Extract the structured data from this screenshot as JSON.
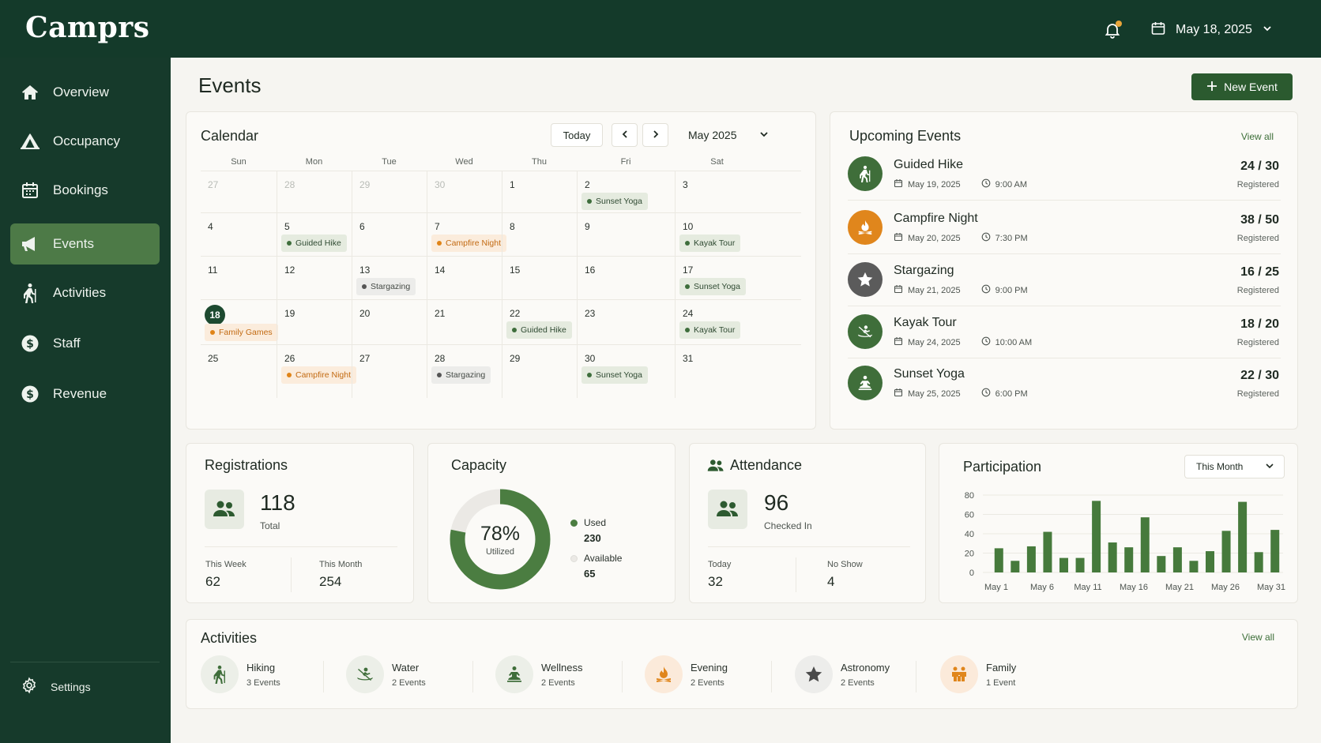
{
  "brand": "Camprs",
  "header": {
    "date": "May 18, 2025"
  },
  "sidebar": {
    "items": [
      {
        "label": "Overview",
        "icon": "home-icon"
      },
      {
        "label": "Occupancy",
        "icon": "tent-icon"
      },
      {
        "label": "Bookings",
        "icon": "calendar-icon"
      },
      {
        "label": "Events",
        "icon": "megaphone-icon",
        "active": true
      },
      {
        "label": "Activities",
        "icon": "hiker-icon"
      },
      {
        "label": "Staff",
        "icon": "dollar-icon"
      },
      {
        "label": "Revenue",
        "icon": "dollar-icon"
      }
    ],
    "settings": "Settings"
  },
  "page": {
    "title": "Events",
    "new_event": "New Event"
  },
  "calendar": {
    "title": "Calendar",
    "today": "Today",
    "month": "May 2025",
    "days_of_week": [
      "Sun",
      "Mon",
      "Tue",
      "Wed",
      "Thu",
      "Fri",
      "Sat"
    ],
    "weeks": [
      [
        {
          "n": "27",
          "muted": true
        },
        {
          "n": "28",
          "muted": true
        },
        {
          "n": "29",
          "muted": true
        },
        {
          "n": "30",
          "muted": true
        },
        {
          "n": "1"
        },
        {
          "n": "2",
          "event": "Sunset Yoga",
          "type": "green"
        },
        {
          "n": "3"
        }
      ],
      [
        {
          "n": "4"
        },
        {
          "n": "5",
          "event": "Guided Hike",
          "type": "green"
        },
        {
          "n": "6"
        },
        {
          "n": "7",
          "event": "Campfire Night",
          "type": "orange"
        },
        {
          "n": "8"
        },
        {
          "n": "9"
        },
        {
          "n": "10",
          "event": "Kayak Tour",
          "type": "green"
        }
      ],
      [
        {
          "n": "11"
        },
        {
          "n": "12"
        },
        {
          "n": "13",
          "event": "Stargazing",
          "type": "gray"
        },
        {
          "n": "14"
        },
        {
          "n": "15"
        },
        {
          "n": "16"
        },
        {
          "n": "17",
          "event": "Sunset Yoga",
          "type": "green"
        }
      ],
      [
        {
          "n": "18",
          "today": true,
          "event": "Family Games",
          "type": "orange"
        },
        {
          "n": "19"
        },
        {
          "n": "20"
        },
        {
          "n": "21"
        },
        {
          "n": "22",
          "event": "Guided Hike",
          "type": "green"
        },
        {
          "n": "23"
        },
        {
          "n": "24",
          "event": "Kayak Tour",
          "type": "green"
        }
      ],
      [
        {
          "n": "25"
        },
        {
          "n": "26",
          "event": "Campfire Night",
          "type": "orange"
        },
        {
          "n": "27"
        },
        {
          "n": "28",
          "event": "Stargazing",
          "type": "gray"
        },
        {
          "n": "29"
        },
        {
          "n": "30",
          "event": "Sunset Yoga",
          "type": "green"
        },
        {
          "n": "31"
        }
      ]
    ]
  },
  "upcoming": {
    "title": "Upcoming Events",
    "view_all": "View all",
    "registered_label": "Registered",
    "items": [
      {
        "name": "Guided Hike",
        "date": "May 19, 2025",
        "time": "9:00 AM",
        "count": "24 / 30",
        "icon": "hiker-icon",
        "color": "#3f6e3a"
      },
      {
        "name": "Campfire Night",
        "date": "May 20, 2025",
        "time": "7:30 PM",
        "count": "38 / 50",
        "icon": "campfire-icon",
        "color": "#e0861c"
      },
      {
        "name": "Stargazing",
        "date": "May 21, 2025",
        "time": "9:00 PM",
        "count": "16 / 25",
        "icon": "star-icon",
        "color": "#5b5b5b"
      },
      {
        "name": "Kayak Tour",
        "date": "May 24, 2025",
        "time": "10:00 AM",
        "count": "18 / 20",
        "icon": "kayak-icon",
        "color": "#3f6e3a"
      },
      {
        "name": "Sunset Yoga",
        "date": "May 25, 2025",
        "time": "6:00 PM",
        "count": "22 / 30",
        "icon": "yoga-icon",
        "color": "#3f6e3a"
      }
    ]
  },
  "registrations": {
    "title": "Registrations",
    "total": "118",
    "total_label": "Total",
    "week_label": "This Week",
    "week_value": "62",
    "month_label": "This Month",
    "month_value": "254"
  },
  "capacity": {
    "title": "Capacity",
    "percent": "78%",
    "percent_value": 78,
    "utilized_label": "Utilized",
    "used_label": "Used",
    "used_value": "230",
    "available_label": "Available",
    "available_value": "65",
    "colors": {
      "used": "#4b7d41",
      "available": "#ebe9e5"
    }
  },
  "attendance": {
    "title": "Attendance",
    "value": "96",
    "value_label": "Checked In",
    "today_label": "Today",
    "today_value": "32",
    "noshow_label": "No Show",
    "noshow_value": "4"
  },
  "participation": {
    "title": "Participation",
    "range": "This Month"
  },
  "chart_data": {
    "type": "bar",
    "title": "Participation",
    "ylim": [
      0,
      80
    ],
    "yticks": [
      0,
      20,
      40,
      60,
      80
    ],
    "xtick_labels": [
      "May 1",
      "May 6",
      "May 11",
      "May 16",
      "May 21",
      "May 26",
      "May 31"
    ],
    "grid": true,
    "color": "#467a3c",
    "values": [
      25,
      12,
      27,
      42,
      15,
      15,
      74,
      31,
      26,
      57,
      17,
      26,
      12,
      22,
      43,
      73,
      21,
      44
    ]
  },
  "activities": {
    "title": "Activities",
    "view_all": "View all",
    "items": [
      {
        "name": "Hiking",
        "count": "3 Events",
        "icon": "hiker-icon",
        "bg": "#ecefe8",
        "fg": "#3f6e3a"
      },
      {
        "name": "Water",
        "count": "2 Events",
        "icon": "kayak-icon",
        "bg": "#ecefe8",
        "fg": "#3f6e3a"
      },
      {
        "name": "Wellness",
        "count": "2 Events",
        "icon": "yoga-icon",
        "bg": "#ecefe8",
        "fg": "#3f6e3a"
      },
      {
        "name": "Evening",
        "count": "2 Events",
        "icon": "campfire-icon",
        "bg": "#fbeada",
        "fg": "#e0861c"
      },
      {
        "name": "Astronomy",
        "count": "2 Events",
        "icon": "star-icon",
        "bg": "#ededeb",
        "fg": "#4a4a4a"
      },
      {
        "name": "Family",
        "count": "1 Event",
        "icon": "family-icon",
        "bg": "#fbeada",
        "fg": "#e0861c"
      }
    ]
  }
}
